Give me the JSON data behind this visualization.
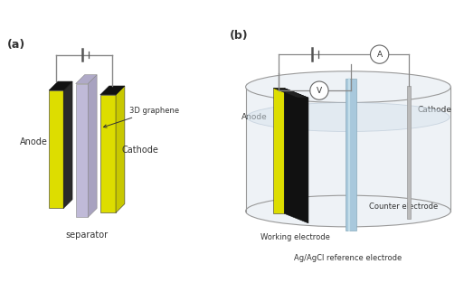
{
  "panel_a_label": "(a)",
  "panel_b_label": "(b)",
  "yellow_color": "#DDDD00",
  "black_color": "#111111",
  "dark_gray": "#2a2a2a",
  "lavender_color": "#C0BAD8",
  "lavender_side": "#A8A2C0",
  "lavender_top": "#B0AAC8",
  "light_blue_color": "#A8C8DC",
  "light_blue2": "#C0D8E8",
  "wire_color": "#888888",
  "text_color": "#333333",
  "bg_color": "#FFFFFF",
  "anode_label": "Anode",
  "cathode_label": "Cathode",
  "separator_label": "separator",
  "graphene_label": "3D graphene",
  "working_label": "Working electrode",
  "counter_label": "Counter electrode",
  "reference_label": "Ag/AgCl reference electrode",
  "anode_b_label": "Anode",
  "cathode_b_label": "Cathode",
  "beaker_fill": "#EEF2F6",
  "beaker_edge": "#999999",
  "liquid_fill": "#D8E4EE",
  "counter_gray": "#BBBBBB"
}
